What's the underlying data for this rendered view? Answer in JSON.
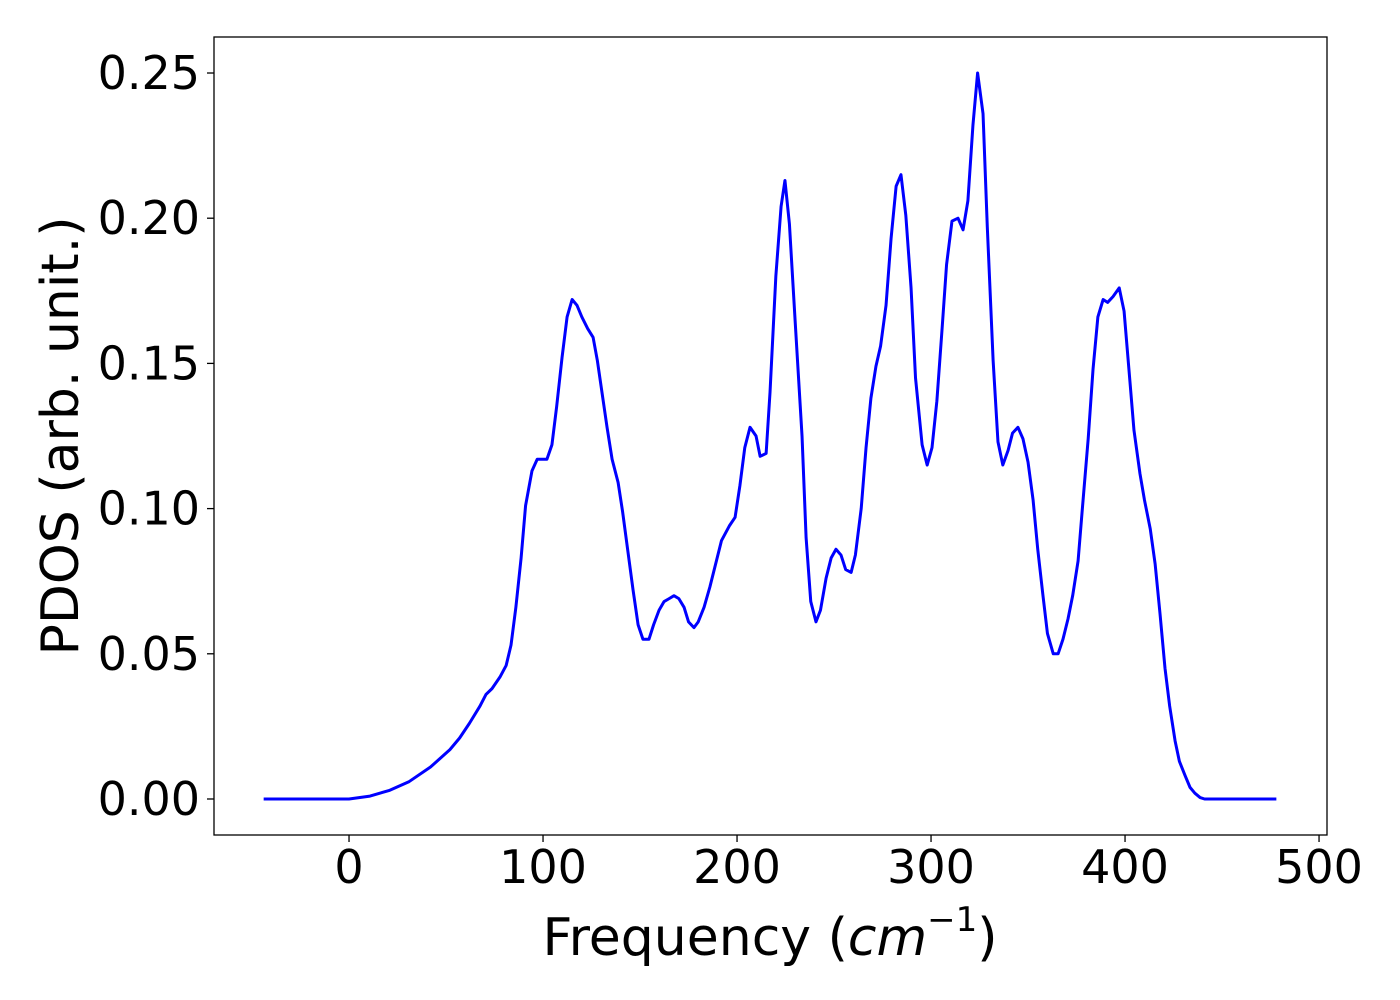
{
  "chart_data": {
    "type": "line",
    "xlabel": [
      "Frequency (",
      "cm",
      "−1",
      ")"
    ],
    "ylabel": "PDOS (arb. unit.)",
    "x": [
      -44,
      -20,
      0,
      10.8,
      21,
      31,
      42,
      52,
      57,
      62,
      67.5,
      70.6,
      73.7,
      77.8,
      81,
      83.5,
      86,
      88.7,
      91,
      94.3,
      97,
      102,
      104.6,
      107,
      109.8,
      112.4,
      115,
      117.5,
      120,
      123,
      125.8,
      128,
      133,
      135.6,
      138.7,
      141,
      143.8,
      146.4,
      149,
      151.5,
      154.6,
      157,
      159.8,
      162.4,
      165,
      167.5,
      170,
      172.7,
      175,
      177.8,
      180,
      183,
      186,
      189,
      192,
      196,
      199,
      201.5,
      204,
      206.7,
      209.8,
      211.9,
      215,
      217,
      220,
      222.7,
      224.7,
      227,
      230,
      233.5,
      235.6,
      238,
      240.7,
      243,
      245.9,
      248.5,
      251,
      253.6,
      256,
      258.8,
      261,
      264,
      266.5,
      269,
      271.6,
      274,
      276.8,
      279.4,
      282,
      284.5,
      287,
      289.7,
      292,
      295.4,
      298,
      300.5,
      303,
      305.7,
      308,
      310.8,
      313.9,
      316.5,
      319,
      321.6,
      324,
      326.8,
      329,
      332,
      334.5,
      337,
      339.7,
      342,
      344.8,
      347.4,
      350,
      352.6,
      355,
      357.7,
      360,
      363,
      365.5,
      368,
      370.6,
      373,
      375.8,
      378,
      381,
      383.5,
      386,
      388.7,
      391,
      393.8,
      397,
      399.5,
      402,
      404.6,
      407.7,
      410,
      413,
      415.5,
      418,
      420.6,
      423,
      425.8,
      428,
      431,
      433.5,
      436,
      438.7,
      441,
      460,
      478
    ],
    "series": [
      {
        "color": "#0000ff",
        "values": [
          0,
          0,
          0,
          0.001,
          0.003,
          0.006,
          0.011,
          0.017,
          0.021,
          0.026,
          0.032,
          0.036,
          0.038,
          0.042,
          0.046,
          0.053,
          0.066,
          0.083,
          0.101,
          0.113,
          0.117,
          0.117,
          0.122,
          0.135,
          0.152,
          0.166,
          0.172,
          0.17,
          0.166,
          0.162,
          0.159,
          0.151,
          0.128,
          0.117,
          0.109,
          0.099,
          0.085,
          0.072,
          0.06,
          0.055,
          0.055,
          0.06,
          0.065,
          0.068,
          0.069,
          0.07,
          0.069,
          0.066,
          0.061,
          0.059,
          0.061,
          0.066,
          0.073,
          0.081,
          0.089,
          0.094,
          0.097,
          0.108,
          0.121,
          0.128,
          0.125,
          0.118,
          0.119,
          0.14,
          0.18,
          0.204,
          0.213,
          0.198,
          0.164,
          0.125,
          0.09,
          0.068,
          0.061,
          0.065,
          0.076,
          0.083,
          0.086,
          0.084,
          0.079,
          0.078,
          0.084,
          0.1,
          0.121,
          0.138,
          0.149,
          0.156,
          0.17,
          0.193,
          0.211,
          0.215,
          0.201,
          0.176,
          0.145,
          0.122,
          0.115,
          0.121,
          0.137,
          0.162,
          0.184,
          0.199,
          0.2,
          0.196,
          0.206,
          0.232,
          0.25,
          0.236,
          0.197,
          0.151,
          0.123,
          0.115,
          0.12,
          0.126,
          0.128,
          0.124,
          0.116,
          0.103,
          0.086,
          0.07,
          0.057,
          0.05,
          0.05,
          0.055,
          0.062,
          0.07,
          0.082,
          0.1,
          0.124,
          0.148,
          0.166,
          0.172,
          0.171,
          0.173,
          0.176,
          0.168,
          0.148,
          0.127,
          0.112,
          0.103,
          0.093,
          0.081,
          0.064,
          0.045,
          0.032,
          0.02,
          0.013,
          0.008,
          0.004,
          0.002,
          0.0005,
          0,
          0,
          0
        ]
      }
    ],
    "xlim": [
      -69.6,
      504.1
    ],
    "ylim": [
      -0.0124,
      0.2624
    ],
    "xticks": [
      0,
      100,
      200,
      300,
      400,
      500
    ],
    "yticks": [
      {
        "value": 0,
        "label": "0.00"
      },
      {
        "value": 0.05,
        "label": "0.05"
      },
      {
        "value": 0.1,
        "label": "0.10"
      },
      {
        "value": 0.15,
        "label": "0.15"
      },
      {
        "value": 0.2,
        "label": "0.20"
      },
      {
        "value": 0.25,
        "label": "0.25"
      }
    ]
  }
}
